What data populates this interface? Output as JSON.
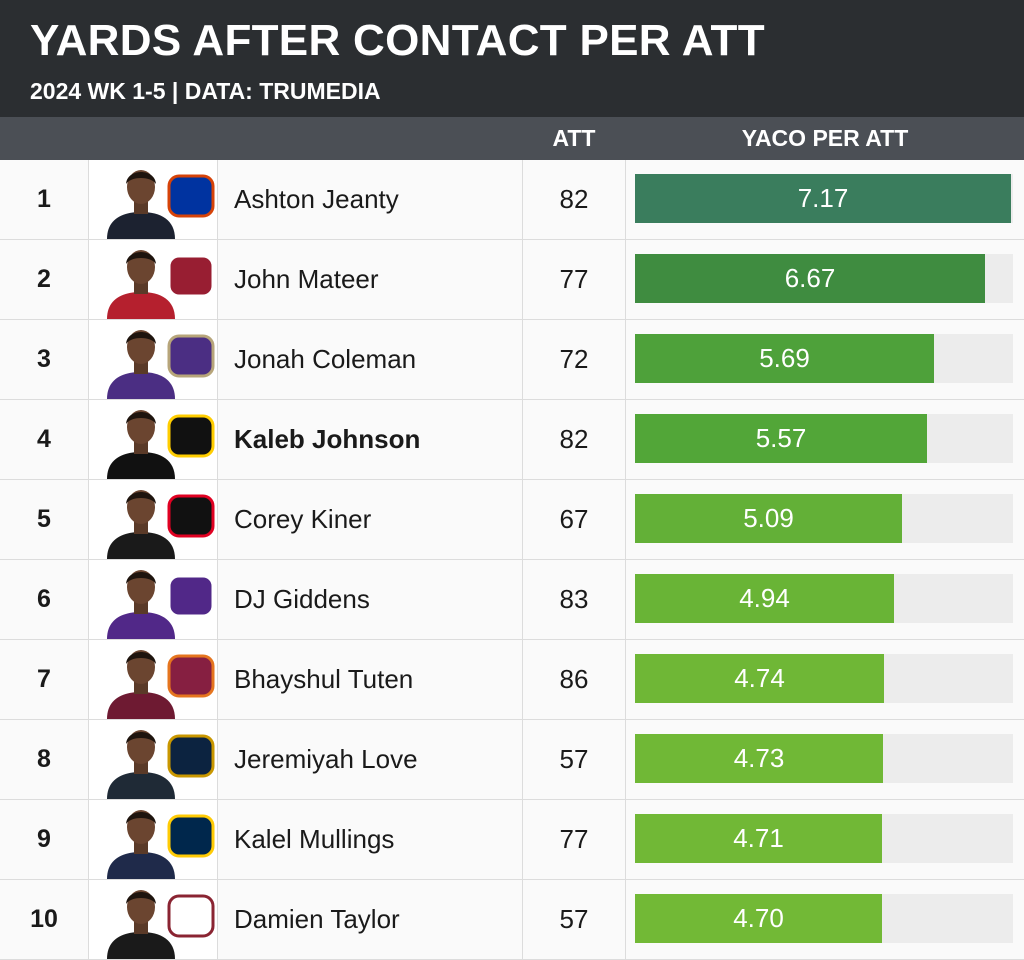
{
  "header": {
    "title": "YARDS AFTER CONTACT PER ATT",
    "subtitle": "2024 WK 1-5 | DATA: TRUMEDIA"
  },
  "columns": {
    "att": "ATT",
    "yaco": "YACO PER ATT"
  },
  "colors": {
    "banner": "#2b2e31",
    "column_header": "#4b4f55",
    "bar_track": "#ececec"
  },
  "chart_data": {
    "type": "bar",
    "orientation": "horizontal",
    "title": "YARDS AFTER CONTACT PER ATT",
    "subtitle": "2024 WK 1-5 | DATA: TRUMEDIA",
    "xlim": [
      0,
      7.2
    ],
    "rows": [
      {
        "rank": "1",
        "player": "Ashton Jeanty",
        "att": "82",
        "yaco": 7.17,
        "label": "7.17",
        "bold": false,
        "color": "#3a7d5d",
        "logo": "boise-state-bronco-logo",
        "logo_color": "#0033a0",
        "logo_accent": "#d64309",
        "jersey": "#1c2230"
      },
      {
        "rank": "2",
        "player": "John Mateer",
        "att": "77",
        "yaco": 6.67,
        "label": "6.67",
        "bold": false,
        "color": "#3f8c40",
        "logo": "washington-state-cougar-logo",
        "logo_color": "#981e32",
        "logo_accent": "#ffffff",
        "jersey": "#b5202e"
      },
      {
        "rank": "3",
        "player": "Jonah Coleman",
        "att": "72",
        "yaco": 5.69,
        "label": "5.69",
        "bold": false,
        "color": "#4ea13a",
        "logo": "washington-w-logo",
        "logo_color": "#4b2e83",
        "logo_accent": "#b7a57a",
        "jersey": "#4b2e83"
      },
      {
        "rank": "4",
        "player": "Kaleb Johnson",
        "att": "82",
        "yaco": 5.57,
        "label": "5.57",
        "bold": true,
        "color": "#52a638",
        "logo": "iowa-hawkeye-logo",
        "logo_color": "#111111",
        "logo_accent": "#ffcd00",
        "jersey": "#111111"
      },
      {
        "rank": "5",
        "player": "Corey Kiner",
        "att": "67",
        "yaco": 5.09,
        "label": "5.09",
        "bold": false,
        "color": "#63b037",
        "logo": "cincinnati-c-logo",
        "logo_color": "#111111",
        "logo_accent": "#e00122",
        "jersey": "#1a1a1a"
      },
      {
        "rank": "6",
        "player": "DJ Giddens",
        "att": "83",
        "yaco": 4.94,
        "label": "4.94",
        "bold": false,
        "color": "#69b436",
        "logo": "kansas-state-wildcat-logo",
        "logo_color": "#512888",
        "logo_accent": "#ffffff",
        "jersey": "#512888"
      },
      {
        "rank": "7",
        "player": "Bhayshul Tuten",
        "att": "86",
        "yaco": 4.74,
        "label": "4.74",
        "bold": false,
        "color": "#6fb736",
        "logo": "virginia-tech-vt-logo",
        "logo_color": "#861f41",
        "logo_accent": "#e5751f",
        "jersey": "#6e1a32"
      },
      {
        "rank": "8",
        "player": "Jeremiyah Love",
        "att": "57",
        "yaco": 4.73,
        "label": "4.73",
        "bold": false,
        "color": "#70b836",
        "logo": "notre-dame-nd-logo",
        "logo_color": "#0c2340",
        "logo_accent": "#c99700",
        "jersey": "#1f2a36"
      },
      {
        "rank": "9",
        "player": "Kalel Mullings",
        "att": "77",
        "yaco": 4.71,
        "label": "4.71",
        "bold": false,
        "color": "#71b836",
        "logo": "michigan-m-logo",
        "logo_color": "#00274c",
        "logo_accent": "#ffcb05",
        "jersey": "#1f2a4a"
      },
      {
        "rank": "10",
        "player": "Damien Taylor",
        "att": "57",
        "yaco": 4.7,
        "label": "4.70",
        "bold": false,
        "color": "#72b936",
        "logo": "troy-t-logo",
        "logo_color": "#ffffff",
        "logo_accent": "#8a2432",
        "jersey": "#1a1a1a"
      }
    ]
  }
}
